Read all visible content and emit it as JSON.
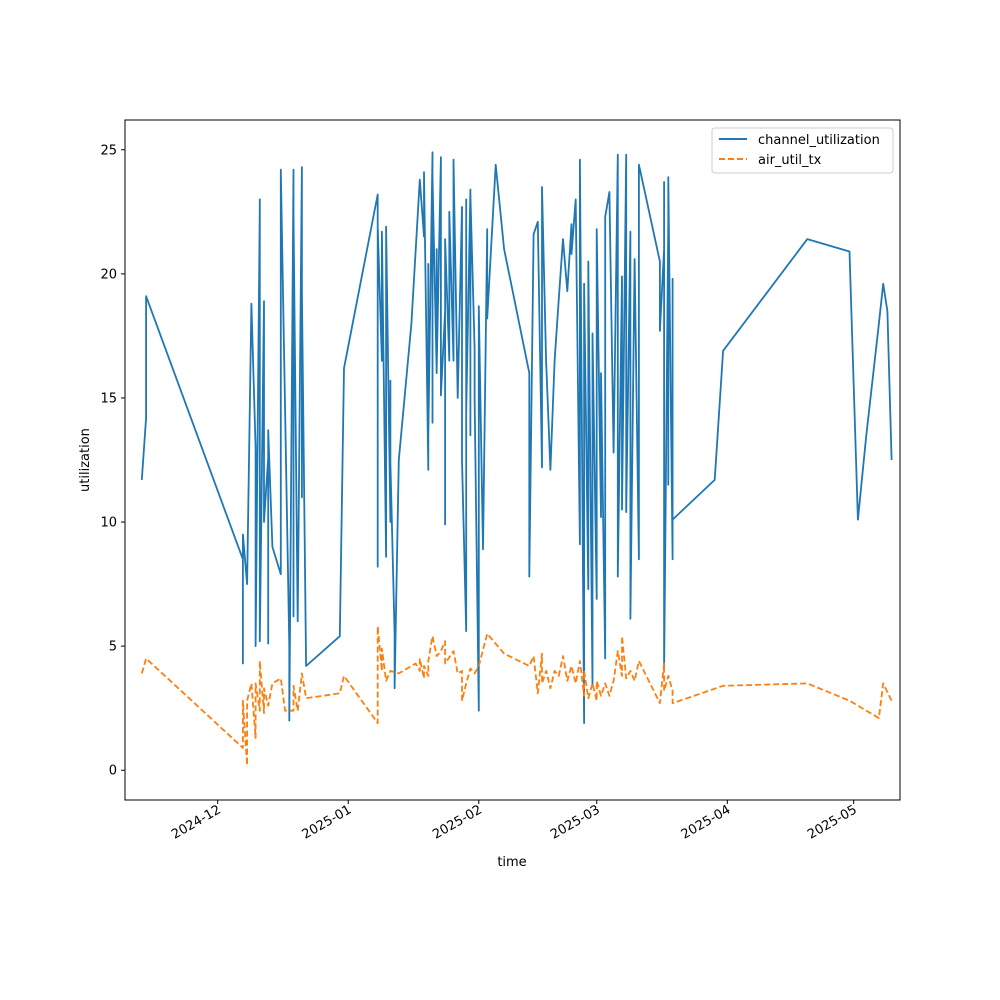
{
  "chart_data": {
    "type": "line",
    "title": "",
    "xlabel": "time",
    "ylabel": "utilization",
    "xlim": [
      "2024-11-09",
      "2025-05-12"
    ],
    "ylim": [
      -1.2,
      26.2
    ],
    "yticks": [
      0,
      5,
      10,
      15,
      20,
      25
    ],
    "xticks": [
      "2024-12-01",
      "2025-01-01",
      "2025-02-01",
      "2025-03-01",
      "2025-04-01",
      "2025-05-01"
    ],
    "xtick_labels": [
      "2024-12",
      "2025-01",
      "2025-02",
      "2025-03",
      "2025-04",
      "2025-05"
    ],
    "grid": false,
    "legend_position": "upper right",
    "series": [
      {
        "name": "channel_utilization",
        "color": "#1f77b4",
        "style": "solid",
        "points": [
          [
            "2024-11-13",
            11.7
          ],
          [
            "2024-11-14",
            14.2
          ],
          [
            "2024-11-14",
            19.1
          ],
          [
            "2024-12-07",
            8.5
          ],
          [
            "2024-12-07",
            4.3
          ],
          [
            "2024-12-07",
            9.5
          ],
          [
            "2024-12-08",
            7.5
          ],
          [
            "2024-12-09",
            18.8
          ],
          [
            "2024-12-10",
            13.0
          ],
          [
            "2024-12-10",
            5.0
          ],
          [
            "2024-12-11",
            22.7
          ],
          [
            "2024-12-11",
            5.5
          ],
          [
            "2024-12-11",
            23.0
          ],
          [
            "2024-12-11",
            5.2
          ],
          [
            "2024-12-12",
            18.9
          ],
          [
            "2024-12-12",
            10.0
          ],
          [
            "2024-12-13",
            12.6
          ],
          [
            "2024-12-13",
            5.1
          ],
          [
            "2024-12-13",
            13.7
          ],
          [
            "2024-12-14",
            9.0
          ],
          [
            "2024-12-16",
            7.9
          ],
          [
            "2024-12-16",
            24.2
          ],
          [
            "2024-12-18",
            5.0
          ],
          [
            "2024-12-18",
            2.0
          ],
          [
            "2024-12-19",
            24.2
          ],
          [
            "2024-12-19",
            6.2
          ],
          [
            "2024-12-19",
            22.4
          ],
          [
            "2024-12-20",
            6.0
          ],
          [
            "2024-12-21",
            24.3
          ],
          [
            "2024-12-21",
            11.0
          ],
          [
            "2024-12-21",
            19.3
          ],
          [
            "2024-12-22",
            4.2
          ],
          [
            "2024-12-30",
            5.4
          ],
          [
            "2024-12-31",
            16.2
          ],
          [
            "2025-01-08",
            23.2
          ],
          [
            "2025-01-08",
            8.2
          ],
          [
            "2025-01-08",
            21.9
          ],
          [
            "2025-01-09",
            16.5
          ],
          [
            "2025-01-09",
            21.7
          ],
          [
            "2025-01-10",
            8.6
          ],
          [
            "2025-01-10",
            21.9
          ],
          [
            "2025-01-11",
            10.0
          ],
          [
            "2025-01-11",
            15.7
          ],
          [
            "2025-01-11",
            12.4
          ],
          [
            "2025-01-12",
            5.5
          ],
          [
            "2025-01-12",
            3.3
          ],
          [
            "2025-01-13",
            12.5
          ],
          [
            "2025-01-16",
            18.0
          ],
          [
            "2025-01-18",
            23.8
          ],
          [
            "2025-01-19",
            21.5
          ],
          [
            "2025-01-19",
            24.1
          ],
          [
            "2025-01-20",
            12.1
          ],
          [
            "2025-01-20",
            20.4
          ],
          [
            "2025-01-20",
            13.5
          ],
          [
            "2025-01-21",
            24.9
          ],
          [
            "2025-01-21",
            14.0
          ],
          [
            "2025-01-21",
            23.9
          ],
          [
            "2025-01-22",
            16.0
          ],
          [
            "2025-01-22",
            21.0
          ],
          [
            "2025-01-22",
            16.2
          ],
          [
            "2025-01-23",
            24.7
          ],
          [
            "2025-01-23",
            15.1
          ],
          [
            "2025-01-24",
            18.5
          ],
          [
            "2025-01-24",
            9.9
          ],
          [
            "2025-01-24",
            21.4
          ],
          [
            "2025-01-25",
            16.5
          ],
          [
            "2025-01-25",
            22.5
          ],
          [
            "2025-01-26",
            16.5
          ],
          [
            "2025-01-26",
            24.6
          ],
          [
            "2025-01-27",
            15.0
          ],
          [
            "2025-01-28",
            22.7
          ],
          [
            "2025-01-28",
            12.5
          ],
          [
            "2025-01-29",
            5.6
          ],
          [
            "2025-01-29",
            23.0
          ],
          [
            "2025-01-29",
            14.4
          ],
          [
            "2025-01-30",
            23.4
          ],
          [
            "2025-01-30",
            13.5
          ],
          [
            "2025-01-30",
            23.2
          ],
          [
            "2025-01-31",
            17.0
          ],
          [
            "2025-01-31",
            15.0
          ],
          [
            "2025-02-01",
            2.4
          ],
          [
            "2025-02-01",
            18.7
          ],
          [
            "2025-02-02",
            8.9
          ],
          [
            "2025-02-03",
            21.8
          ],
          [
            "2025-02-03",
            18.2
          ],
          [
            "2025-02-05",
            24.4
          ],
          [
            "2025-02-07",
            21.0
          ],
          [
            "2025-02-13",
            16.0
          ],
          [
            "2025-02-13",
            7.8
          ],
          [
            "2025-02-14",
            21.6
          ],
          [
            "2025-02-15",
            22.1
          ],
          [
            "2025-02-16",
            12.2
          ],
          [
            "2025-02-16",
            23.5
          ],
          [
            "2025-02-17",
            16.3
          ],
          [
            "2025-02-17",
            16.4
          ],
          [
            "2025-02-18",
            12.1
          ],
          [
            "2025-02-19",
            16.5
          ],
          [
            "2025-02-20",
            19.0
          ],
          [
            "2025-02-21",
            21.4
          ],
          [
            "2025-02-22",
            19.3
          ],
          [
            "2025-02-23",
            22.0
          ],
          [
            "2025-02-23",
            20.8
          ],
          [
            "2025-02-24",
            23.0
          ],
          [
            "2025-02-25",
            9.1
          ],
          [
            "2025-02-25",
            24.6
          ],
          [
            "2025-02-26",
            1.9
          ],
          [
            "2025-02-26",
            19.6
          ],
          [
            "2025-02-27",
            7.3
          ],
          [
            "2025-02-27",
            20.5
          ],
          [
            "2025-02-28",
            3.4
          ],
          [
            "2025-02-28",
            17.6
          ],
          [
            "2025-03-01",
            6.9
          ],
          [
            "2025-03-01",
            21.8
          ],
          [
            "2025-03-02",
            10.2
          ],
          [
            "2025-03-02",
            16.0
          ],
          [
            "2025-03-03",
            4.5
          ],
          [
            "2025-03-03",
            22.3
          ],
          [
            "2025-03-04",
            23.3
          ],
          [
            "2025-03-05",
            12.8
          ],
          [
            "2025-03-06",
            24.8
          ],
          [
            "2025-03-06",
            7.8
          ],
          [
            "2025-03-07",
            19.9
          ],
          [
            "2025-03-07",
            10.5
          ],
          [
            "2025-03-08",
            24.8
          ],
          [
            "2025-03-08",
            10.4
          ],
          [
            "2025-03-09",
            21.7
          ],
          [
            "2025-03-09",
            6.1
          ],
          [
            "2025-03-10",
            20.6
          ],
          [
            "2025-03-11",
            8.5
          ],
          [
            "2025-03-11",
            24.4
          ],
          [
            "2025-03-16",
            20.5
          ],
          [
            "2025-03-16",
            17.7
          ],
          [
            "2025-03-17",
            21.0
          ],
          [
            "2025-03-17",
            6.3
          ],
          [
            "2025-03-17",
            23.7
          ],
          [
            "2025-03-17",
            4.0
          ],
          [
            "2025-03-18",
            22.1
          ],
          [
            "2025-03-18",
            11.5
          ],
          [
            "2025-03-18",
            23.9
          ],
          [
            "2025-03-19",
            8.5
          ],
          [
            "2025-03-19",
            19.8
          ],
          [
            "2025-03-19",
            10.1
          ],
          [
            "2025-03-29",
            11.7
          ],
          [
            "2025-03-31",
            16.9
          ],
          [
            "2025-04-20",
            21.4
          ],
          [
            "2025-04-30",
            20.9
          ],
          [
            "2025-05-02",
            10.1
          ],
          [
            "2025-05-04",
            13.5
          ],
          [
            "2025-05-07",
            18.0
          ],
          [
            "2025-05-08",
            19.6
          ],
          [
            "2025-05-09",
            18.5
          ],
          [
            "2025-05-10",
            12.5
          ]
        ]
      },
      {
        "name": "air_util_tx",
        "color": "#ff7f0e",
        "style": "dashed",
        "points": [
          [
            "2024-11-13",
            3.9
          ],
          [
            "2024-11-14",
            4.5
          ],
          [
            "2024-12-07",
            0.9
          ],
          [
            "2024-12-07",
            2.8
          ],
          [
            "2024-12-08",
            0.2
          ],
          [
            "2024-12-08",
            2.8
          ],
          [
            "2024-12-09",
            3.5
          ],
          [
            "2024-12-10",
            1.3
          ],
          [
            "2024-12-10",
            3.5
          ],
          [
            "2024-12-11",
            2.4
          ],
          [
            "2024-12-11",
            4.4
          ],
          [
            "2024-12-12",
            2.3
          ],
          [
            "2024-12-12",
            3.3
          ],
          [
            "2024-12-13",
            2.6
          ],
          [
            "2024-12-14",
            3.5
          ],
          [
            "2024-12-16",
            3.7
          ],
          [
            "2024-12-17",
            2.4
          ],
          [
            "2024-12-19",
            2.4
          ],
          [
            "2024-12-19",
            3.4
          ],
          [
            "2024-12-20",
            2.4
          ],
          [
            "2024-12-21",
            3.9
          ],
          [
            "2024-12-22",
            2.9
          ],
          [
            "2024-12-30",
            3.1
          ],
          [
            "2024-12-31",
            3.8
          ],
          [
            "2025-01-08",
            1.9
          ],
          [
            "2025-01-08",
            5.8
          ],
          [
            "2025-01-09",
            4.0
          ],
          [
            "2025-01-09",
            4.9
          ],
          [
            "2025-01-10",
            3.6
          ],
          [
            "2025-01-11",
            4.0
          ],
          [
            "2025-01-13",
            3.9
          ],
          [
            "2025-01-17",
            4.3
          ],
          [
            "2025-01-18",
            4.0
          ],
          [
            "2025-01-18",
            4.5
          ],
          [
            "2025-01-19",
            3.7
          ],
          [
            "2025-01-19",
            4.2
          ],
          [
            "2025-01-20",
            3.8
          ],
          [
            "2025-01-20",
            4.4
          ],
          [
            "2025-01-21",
            5.4
          ],
          [
            "2025-01-22",
            4.6
          ],
          [
            "2025-01-23",
            4.8
          ],
          [
            "2025-01-24",
            5.2
          ],
          [
            "2025-01-24",
            4.3
          ],
          [
            "2025-01-26",
            4.8
          ],
          [
            "2025-01-27",
            3.9
          ],
          [
            "2025-01-28",
            4.0
          ],
          [
            "2025-01-28",
            2.8
          ],
          [
            "2025-01-29",
            3.5
          ],
          [
            "2025-01-30",
            4.1
          ],
          [
            "2025-01-31",
            3.9
          ],
          [
            "2025-02-01",
            4.2
          ],
          [
            "2025-02-03",
            5.5
          ],
          [
            "2025-02-07",
            4.7
          ],
          [
            "2025-02-13",
            4.2
          ],
          [
            "2025-02-14",
            4.6
          ],
          [
            "2025-02-15",
            3.1
          ],
          [
            "2025-02-16",
            4.7
          ],
          [
            "2025-02-16",
            3.5
          ],
          [
            "2025-02-17",
            4.0
          ],
          [
            "2025-02-18",
            3.3
          ],
          [
            "2025-02-19",
            4.0
          ],
          [
            "2025-02-20",
            3.8
          ],
          [
            "2025-02-21",
            4.6
          ],
          [
            "2025-02-22",
            3.6
          ],
          [
            "2025-02-23",
            4.2
          ],
          [
            "2025-02-24",
            3.5
          ],
          [
            "2025-02-25",
            4.4
          ],
          [
            "2025-02-26",
            3.0
          ],
          [
            "2025-02-26",
            4.0
          ],
          [
            "2025-02-27",
            2.9
          ],
          [
            "2025-02-28",
            3.5
          ],
          [
            "2025-03-01",
            2.8
          ],
          [
            "2025-03-01",
            3.6
          ],
          [
            "2025-03-02",
            3.0
          ],
          [
            "2025-03-03",
            3.5
          ],
          [
            "2025-03-04",
            3.0
          ],
          [
            "2025-03-05",
            3.6
          ],
          [
            "2025-03-06",
            4.8
          ],
          [
            "2025-03-07",
            3.8
          ],
          [
            "2025-03-07",
            5.4
          ],
          [
            "2025-03-08",
            3.7
          ],
          [
            "2025-03-09",
            4.0
          ],
          [
            "2025-03-10",
            3.6
          ],
          [
            "2025-03-11",
            4.4
          ],
          [
            "2025-03-16",
            2.7
          ],
          [
            "2025-03-17",
            4.3
          ],
          [
            "2025-03-17",
            3.2
          ],
          [
            "2025-03-18",
            3.8
          ],
          [
            "2025-03-19",
            3.2
          ],
          [
            "2025-03-19",
            2.7
          ],
          [
            "2025-03-31",
            3.4
          ],
          [
            "2025-04-20",
            3.5
          ],
          [
            "2025-04-30",
            2.8
          ],
          [
            "2025-05-07",
            2.1
          ],
          [
            "2025-05-08",
            3.5
          ],
          [
            "2025-05-10",
            2.8
          ]
        ]
      }
    ]
  }
}
